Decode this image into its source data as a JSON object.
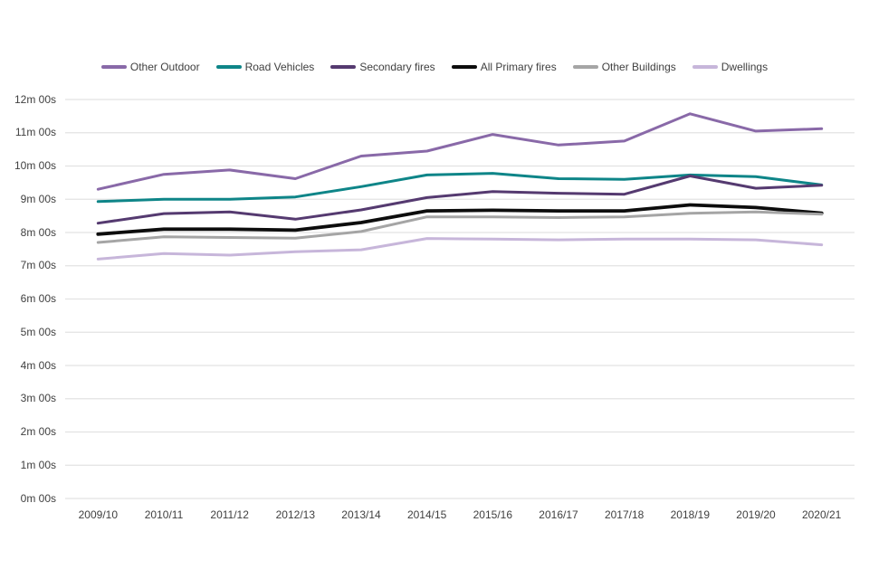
{
  "page": {
    "background": "#ffffff"
  },
  "colors": {
    "grid": "#e2e2e2",
    "text": "#404040",
    "other_outdoor": "#8969a8",
    "road_vehicles": "#0e8588",
    "secondary_fires": "#553a70",
    "all_primary_fires": "#0d0d0d",
    "other_buildings": "#a5a5a5",
    "dwellings": "#c7b6da"
  },
  "chart_data": {
    "type": "line",
    "title": "",
    "unit": "response time (minutes, shown as m:ss on axis)",
    "legend_position": "top",
    "grid": "horizontal",
    "categories": [
      "2009/10",
      "2010/11",
      "2011/12",
      "2012/13",
      "2013/14",
      "2014/15",
      "2015/16",
      "2016/17",
      "2017/18",
      "2018/19",
      "2019/20",
      "2020/21"
    ],
    "series": [
      {
        "name": "Other Outdoor",
        "color": "#8969a8",
        "stroke_width": 3,
        "values": [
          9.3,
          9.75,
          9.88,
          9.62,
          10.3,
          10.45,
          10.95,
          10.63,
          10.75,
          11.57,
          11.05,
          11.12
        ]
      },
      {
        "name": "Road Vehicles",
        "color": "#0e8588",
        "stroke_width": 3,
        "values": [
          8.93,
          9.0,
          9.0,
          9.07,
          9.38,
          9.73,
          9.78,
          9.62,
          9.6,
          9.73,
          9.68,
          9.43
        ]
      },
      {
        "name": "Secondary fires",
        "color": "#553a70",
        "stroke_width": 3,
        "values": [
          8.28,
          8.57,
          8.62,
          8.4,
          8.68,
          9.05,
          9.23,
          9.18,
          9.15,
          9.7,
          9.33,
          9.42
        ]
      },
      {
        "name": "All Primary fires",
        "color": "#0d0d0d",
        "stroke_width": 3.8,
        "values": [
          7.95,
          8.1,
          8.1,
          8.07,
          8.3,
          8.65,
          8.67,
          8.65,
          8.65,
          8.83,
          8.75,
          8.58
        ]
      },
      {
        "name": "Other Buildings",
        "color": "#a5a5a5",
        "stroke_width": 3,
        "values": [
          7.7,
          7.87,
          7.85,
          7.83,
          8.03,
          8.47,
          8.47,
          8.45,
          8.47,
          8.58,
          8.62,
          8.55
        ]
      },
      {
        "name": "Dwellings",
        "color": "#c7b6da",
        "stroke_width": 3,
        "values": [
          7.2,
          7.37,
          7.32,
          7.42,
          7.48,
          7.82,
          7.8,
          7.78,
          7.8,
          7.8,
          7.78,
          7.63
        ]
      }
    ],
    "y_axis": {
      "min": 0,
      "max": 12,
      "tick_labels_top_to_bottom": [
        "12m 00s",
        "11m 00s",
        "10m 00s",
        "9m 00s",
        "8m 00s",
        "7m 00s",
        "6m 00s",
        "5m 00s",
        "4m 00s",
        "3m 00s",
        "2m 00s",
        "1m 00s",
        "0m 00s"
      ]
    }
  }
}
